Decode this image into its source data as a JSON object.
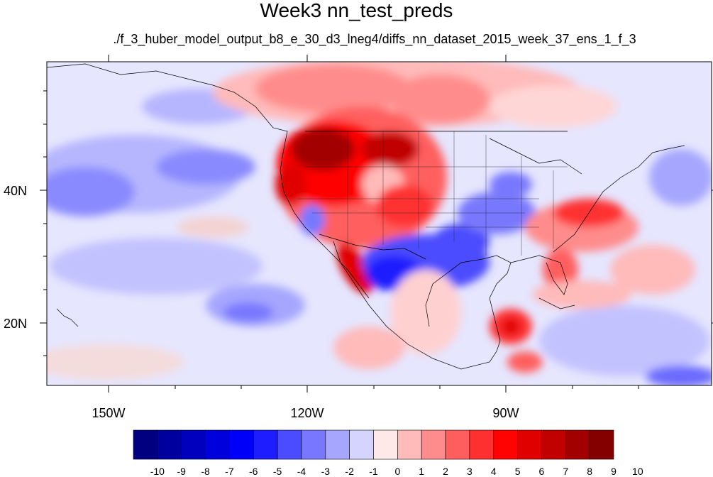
{
  "title": "Week3 nn_test_preds",
  "subtitle": "./f_3_huber_model_output_b8_e_30_d3_lneg4/diffs_nn_dataset_2015_week_37_ens_1_f_3",
  "map": {
    "projection": "cylindrical equidistant",
    "lon_range": [
      -160,
      -62
    ],
    "lat_range": [
      10,
      59
    ],
    "lon_ticks": [
      {
        "value": -150,
        "label": "150W"
      },
      {
        "value": -120,
        "label": "120W"
      },
      {
        "value": -90,
        "label": "90W"
      }
    ],
    "lat_ticks": [
      {
        "value": 40,
        "label": "40N"
      },
      {
        "value": 20,
        "label": "20N"
      }
    ],
    "features": [
      "coastlines",
      "country borders",
      "US state borders"
    ]
  },
  "colorbar": {
    "labels": [
      "-10",
      "-9",
      "-8",
      "-7",
      "-6",
      "-5",
      "-4",
      "-3",
      "-2",
      "-1",
      "0",
      "1",
      "2",
      "3",
      "4",
      "5",
      "6",
      "7",
      "8",
      "9",
      "10"
    ],
    "colors": [
      "#000080",
      "#00009e",
      "#0000bd",
      "#0000dc",
      "#0000fa",
      "#1d1dff",
      "#4b4bff",
      "#7878ff",
      "#a6a6ff",
      "#d4d4ff",
      "#ffe8e8",
      "#ffbaba",
      "#ff8c8c",
      "#ff5e5e",
      "#ff3030",
      "#ff0202",
      "#e00000",
      "#c10000",
      "#a20000",
      "#840000"
    ]
  }
}
